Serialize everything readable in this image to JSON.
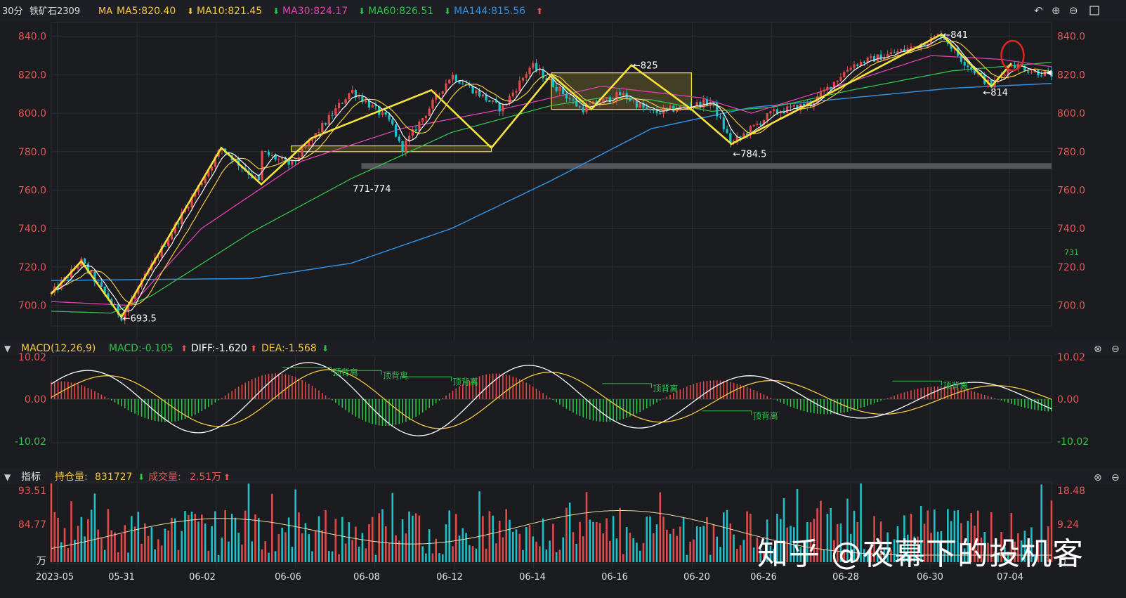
{
  "colors": {
    "bg": "#1b1c20",
    "up": "#e04a4a",
    "down": "#1fc1c9",
    "ma5": "#ffffff",
    "ma10": "#f5c842",
    "ma30": "#e040b0",
    "ma60": "#2fc24a",
    "ma144": "#2f8fe0",
    "axis": "#e25656",
    "green_axis": "#3fbf4f",
    "annotation": "#f7e23a"
  },
  "header": {
    "period": "30分",
    "symbol": "铁矿石2309",
    "ma_prefix": "MA",
    "ma5": "MA5:820.40",
    "ma10": "MA10:821.45",
    "ma30": "MA30:824.17",
    "ma60": "MA60:826.51",
    "ma144": "MA144:815.56",
    "icons": [
      "undo-icon",
      "zoom-in-icon",
      "zoom-out-icon",
      "settings-icon"
    ]
  },
  "macd_header": {
    "label": "MACD(12,26,9)",
    "macd": "MACD:-0.105",
    "diff": "DIFF:-1.620",
    "dea": "DEA:-1.568"
  },
  "vol_header": {
    "label": "指标",
    "oi_label": "持仓量:",
    "oi_value": "831727",
    "vol_label": "成交量:",
    "vol_value": "2.51万"
  },
  "watermark": "知乎 @夜幕下的投机客",
  "chart_data": [
    {
      "type": "candlestick",
      "title": "铁矿石2309 30分",
      "x": [
        "2023-05",
        "05-31",
        "06-02",
        "06-06",
        "06-08",
        "06-12",
        "06-14",
        "06-16",
        "06-20",
        "06-26",
        "06-28",
        "06-30",
        "07-04"
      ],
      "yticks": [
        "840.0",
        "820.0",
        "800.0",
        "780.0",
        "760.0",
        "740.0",
        "720.0",
        "700.0"
      ],
      "ylim": [
        690,
        845
      ],
      "price_path": [
        [
          0,
          706
        ],
        [
          0.03,
          723
        ],
        [
          0.07,
          694
        ],
        [
          0.17,
          782
        ],
        [
          0.21,
          763
        ],
        [
          0.2,
          782
        ],
        [
          0.24,
          773
        ],
        [
          0.3,
          812
        ],
        [
          0.34,
          795
        ],
        [
          0.35,
          781
        ],
        [
          0.4,
          820
        ],
        [
          0.45,
          802
        ],
        [
          0.48,
          825
        ],
        [
          0.53,
          802
        ],
        [
          0.57,
          810
        ],
        [
          0.6,
          800
        ],
        [
          0.66,
          806
        ],
        [
          0.68,
          784
        ],
        [
          0.72,
          800
        ],
        [
          0.76,
          805
        ],
        [
          0.8,
          825
        ],
        [
          0.86,
          834
        ],
        [
          0.89,
          841
        ],
        [
          0.91,
          828
        ],
        [
          0.94,
          814
        ],
        [
          0.96,
          826
        ],
        [
          0.98,
          822
        ],
        [
          1.0,
          820
        ]
      ],
      "zigzag": [
        [
          0,
          706
        ],
        [
          0.03,
          723
        ],
        [
          0.07,
          694
        ],
        [
          0.17,
          782
        ],
        [
          0.21,
          763
        ],
        [
          0.26,
          787
        ],
        [
          0.38,
          812
        ],
        [
          0.44,
          782
        ],
        [
          0.5,
          820
        ],
        [
          0.54,
          802
        ],
        [
          0.58,
          825
        ],
        [
          0.64,
          802
        ],
        [
          0.68,
          784
        ],
        [
          0.74,
          800
        ],
        [
          0.89,
          841
        ],
        [
          0.94,
          814
        ],
        [
          0.96,
          826
        ]
      ],
      "ma144": [
        [
          0,
          713
        ],
        [
          0.2,
          714
        ],
        [
          0.3,
          722
        ],
        [
          0.4,
          740
        ],
        [
          0.5,
          765
        ],
        [
          0.6,
          792
        ],
        [
          0.7,
          803
        ],
        [
          0.8,
          808
        ],
        [
          0.9,
          813
        ],
        [
          1.0,
          815.5
        ]
      ],
      "ma60": [
        [
          0,
          697
        ],
        [
          0.06,
          696
        ],
        [
          0.1,
          705
        ],
        [
          0.2,
          738
        ],
        [
          0.3,
          766
        ],
        [
          0.4,
          790
        ],
        [
          0.5,
          804
        ],
        [
          0.55,
          808
        ],
        [
          0.6,
          807
        ],
        [
          0.66,
          801
        ],
        [
          0.72,
          803
        ],
        [
          0.8,
          812
        ],
        [
          0.9,
          822
        ],
        [
          1.0,
          826.5
        ]
      ],
      "ma30": [
        [
          0,
          702
        ],
        [
          0.08,
          700
        ],
        [
          0.15,
          740
        ],
        [
          0.25,
          775
        ],
        [
          0.35,
          792
        ],
        [
          0.45,
          802
        ],
        [
          0.55,
          814
        ],
        [
          0.65,
          808
        ],
        [
          0.7,
          800
        ],
        [
          0.78,
          813
        ],
        [
          0.88,
          830
        ],
        [
          0.95,
          828
        ],
        [
          1.0,
          824.2
        ]
      ],
      "annotations": [
        {
          "text": "←693.5",
          "x": 0.07,
          "y": 693.5
        },
        {
          "text": "771-774",
          "x": 0.3,
          "y": 761
        },
        {
          "text": "←825",
          "x": 0.58,
          "y": 825
        },
        {
          "text": "←784.5",
          "x": 0.68,
          "y": 779
        },
        {
          "text": "←841",
          "x": 0.89,
          "y": 841
        },
        {
          "text": "←814",
          "x": 0.93,
          "y": 811
        }
      ],
      "zones": [
        {
          "name": "range-box-780",
          "x0": 0.24,
          "x1": 0.44,
          "y0": 780,
          "y1": 783
        },
        {
          "name": "range-box-820",
          "x0": 0.5,
          "x1": 0.64,
          "y0": 802,
          "y1": 821
        }
      ],
      "support_band": {
        "x0": 0.31,
        "x1": 1.0,
        "y0": 771,
        "y1": 774
      },
      "right_value": "731"
    },
    {
      "type": "macd",
      "yticks": [
        "10.02",
        "0.00",
        "-10.02"
      ],
      "ylim": [
        -10.02,
        10.02
      ],
      "labels": [
        "顶背离",
        "顶背离",
        "顶背离",
        "顶背离",
        "顶背离",
        "顶背离"
      ]
    },
    {
      "type": "bar",
      "name": "volume",
      "left_ticks": [
        "93.51",
        "84.77",
        "万"
      ],
      "right_ticks": [
        "18.48",
        "9.24",
        "万"
      ]
    }
  ]
}
